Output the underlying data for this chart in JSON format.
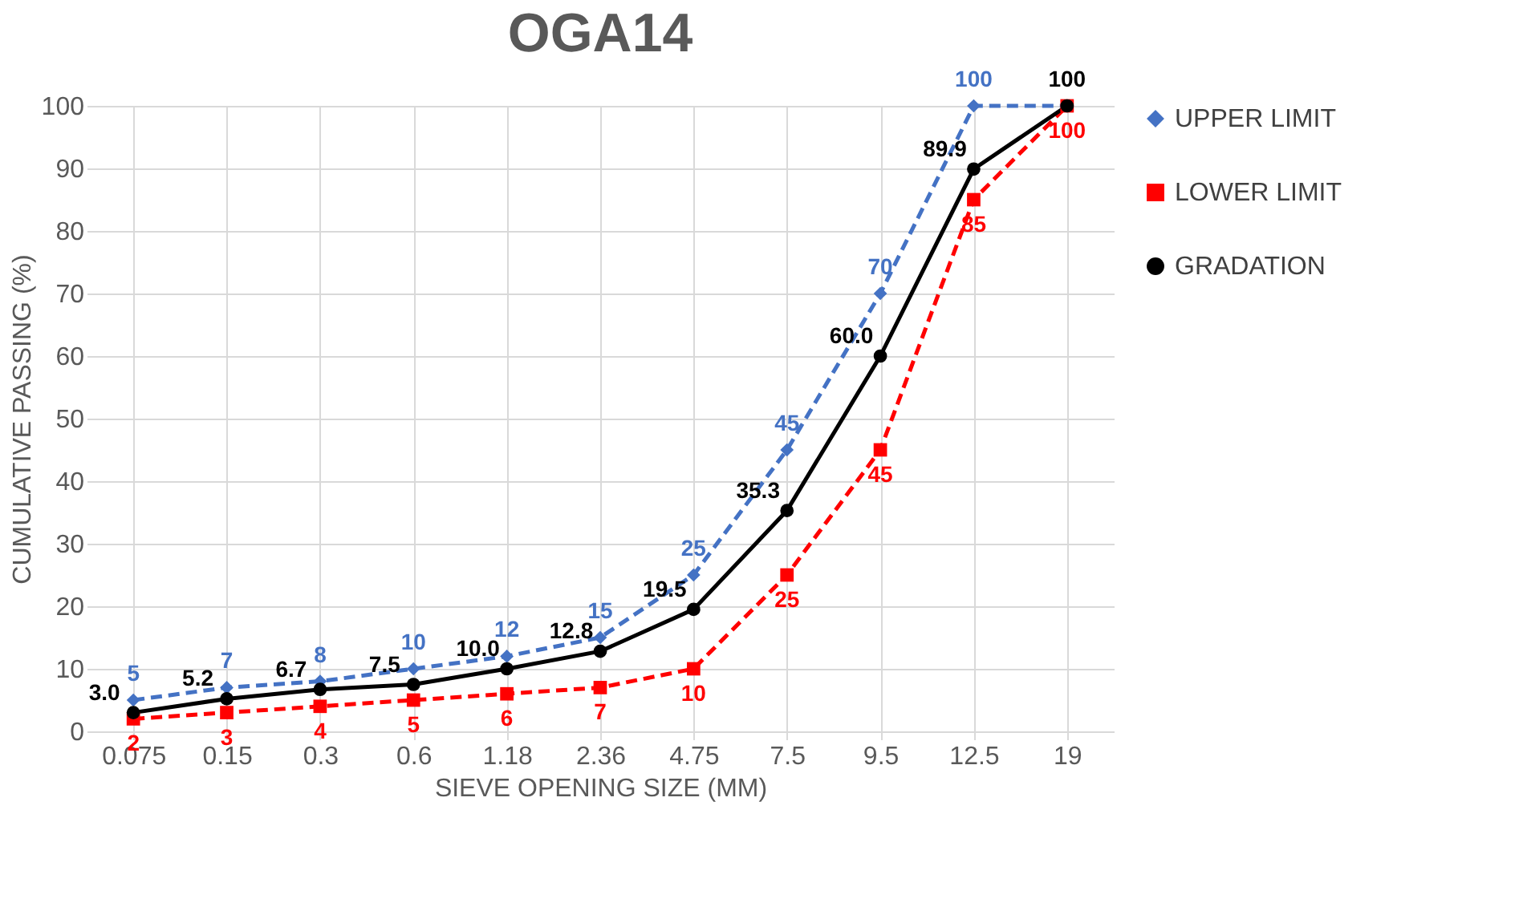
{
  "chart_data": {
    "type": "line",
    "title": "OGA14",
    "xlabel": "SIEVE OPENING SIZE (MM)",
    "ylabel": "CUMULATIVE PASSING (%)",
    "categories": [
      "0.075",
      "0.15",
      "0.3",
      "0.6",
      "1.18",
      "2.36",
      "4.75",
      "7.5",
      "9.5",
      "12.5",
      "19"
    ],
    "series": [
      {
        "name": "UPPER LIMIT",
        "color": "#4472c4",
        "marker": "diamond",
        "line_style": "dashed",
        "values": [
          5,
          7,
          8,
          10,
          12,
          15,
          25,
          45,
          70,
          100,
          100
        ],
        "value_labels": [
          "5",
          "7",
          "8",
          "10",
          "12",
          "15",
          "25",
          "45",
          "70",
          "100",
          null
        ]
      },
      {
        "name": "LOWER LIMIT",
        "color": "#ff0000",
        "marker": "square",
        "line_style": "dashed",
        "values": [
          2,
          3,
          4,
          5,
          6,
          7,
          10,
          25,
          45,
          85,
          100
        ],
        "value_labels": [
          "2",
          "3",
          "4",
          "5",
          "6",
          "7",
          "10",
          "25",
          "45",
          "85",
          "100"
        ]
      },
      {
        "name": "GRADATION",
        "color": "#000000",
        "marker": "circle",
        "line_style": "solid",
        "values": [
          3.0,
          5.2,
          6.7,
          7.5,
          10.0,
          12.8,
          19.5,
          35.3,
          60.0,
          89.9,
          100
        ],
        "value_labels": [
          "3.0",
          "5.2",
          "6.7",
          "7.5",
          "10.0",
          "12.8",
          "19.5",
          "35.3",
          "60.0",
          "89.9",
          "100"
        ]
      }
    ],
    "ylim": [
      0,
      100
    ],
    "yticks": [
      0,
      10,
      20,
      30,
      40,
      50,
      60,
      70,
      80,
      90,
      100
    ],
    "grid": true,
    "legend": "right"
  }
}
